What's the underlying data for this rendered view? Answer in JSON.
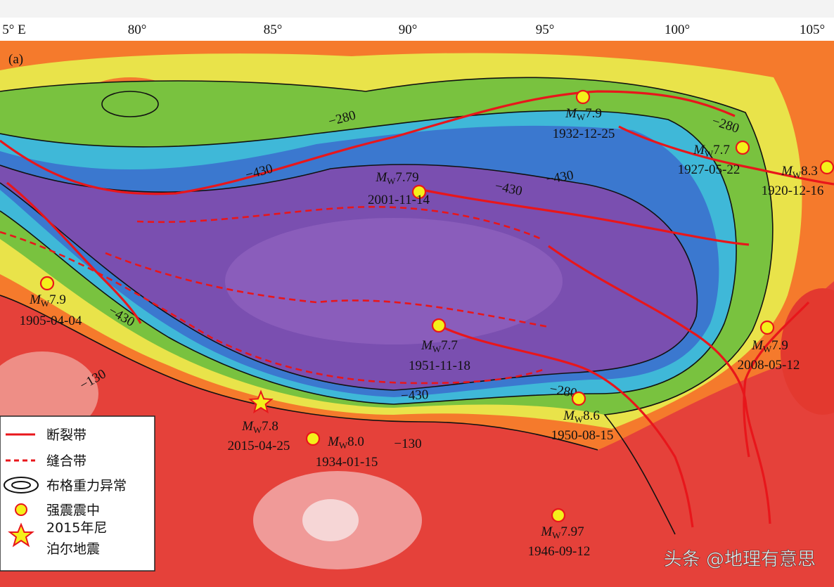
{
  "axis": {
    "longitudes": [
      "5° E",
      "80°",
      "85°",
      "90°",
      "95°",
      "100°",
      "105°"
    ]
  },
  "panel_label": "(a)",
  "contour_labels": [
    "−280",
    "−280",
    "−280",
    "−430",
    "−430",
    "−430",
    "−430",
    "−430",
    "−130",
    "−130"
  ],
  "magnitude_symbol": "M",
  "magnitude_subscript": "W",
  "earthquakes": [
    {
      "magnitude": "7.9",
      "date": "1932-12-25"
    },
    {
      "magnitude": "7.7",
      "date": "1927-05-22"
    },
    {
      "magnitude": "8.3",
      "date": "1920-12-16"
    },
    {
      "magnitude": "7.79",
      "date": "2001-11-14"
    },
    {
      "magnitude": "7.9",
      "date": "1905-04-04"
    },
    {
      "magnitude": "7.7",
      "date": "1951-11-18"
    },
    {
      "magnitude": "7.9",
      "date": "2008-05-12"
    },
    {
      "magnitude": "8.6",
      "date": "1950-08-15"
    },
    {
      "magnitude": "7.8",
      "date": "2015-04-25"
    },
    {
      "magnitude": "8.0",
      "date": "1934-01-15"
    },
    {
      "magnitude": "7.97",
      "date": "1946-09-12"
    }
  ],
  "legend": [
    {
      "lines": [
        "断裂带"
      ]
    },
    {
      "lines": [
        "缝合带"
      ]
    },
    {
      "lines": [
        "布格重力异常"
      ]
    },
    {
      "lines": [
        "强震震中"
      ]
    },
    {
      "lines": [
        "2015年尼",
        "泊尔地震"
      ]
    }
  ],
  "watermark": "头条 @地理有意思"
}
